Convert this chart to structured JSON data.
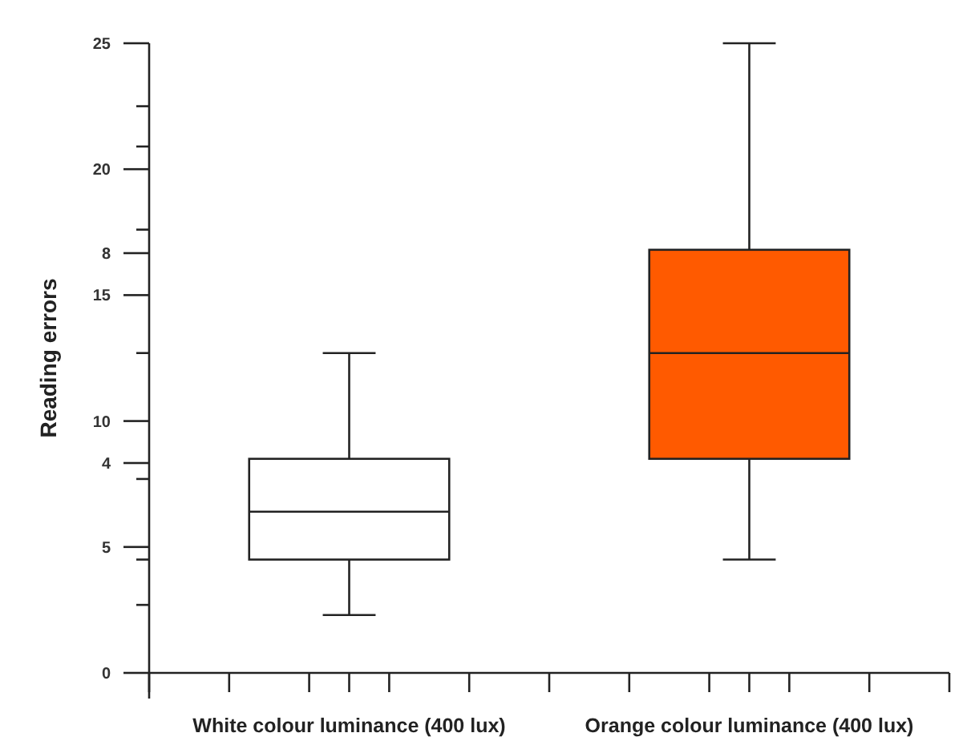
{
  "chart_data": {
    "type": "box",
    "ylabel": "Reading errors",
    "categories": [
      "White colour luminance (400 lux)",
      "Orange colour luminance (400 lux)"
    ],
    "colors": [
      "#ffffff",
      "#ff5a00"
    ],
    "boxes": [
      {
        "low": 2.3,
        "q1": 4.5,
        "median": 6.4,
        "q3": 8.5,
        "high": 12.7
      },
      {
        "low": 4.5,
        "q1": 8.5,
        "median": 12.7,
        "q3": 16.8,
        "high": 25
      }
    ],
    "ylim": [
      0,
      25
    ],
    "yticks": [
      0,
      {
        "value": 2.7,
        "label": null
      },
      {
        "value": 4.5,
        "label": null
      },
      {
        "value": 5,
        "label": "5"
      },
      {
        "value": 7.7,
        "label": null
      },
      10,
      {
        "value": 12.7,
        "label": null
      },
      15,
      {
        "value": 17.6,
        "label": null
      },
      20,
      {
        "value": 20.9,
        "label": null
      },
      {
        "value": 22.5,
        "label": null
      },
      25
    ],
    "y2lim": [
      0,
      12
    ],
    "y2ticks": [
      4,
      8
    ],
    "grid": false
  }
}
